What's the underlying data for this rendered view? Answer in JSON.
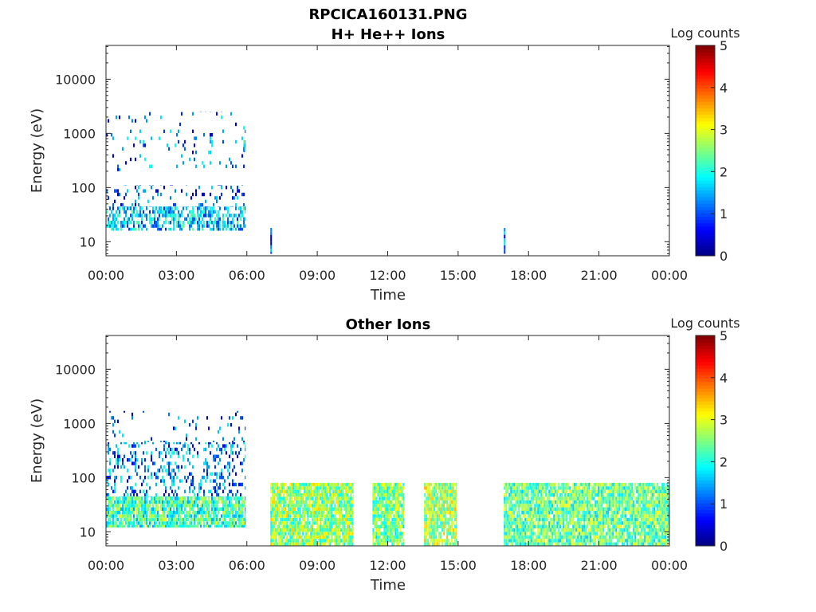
{
  "figure": {
    "filename": "RPCICA160131.PNG"
  },
  "colormap": [
    "#00007f",
    "#0000ff",
    "#007fff",
    "#00ffff",
    "#7fff7f",
    "#ffff00",
    "#ff7f00",
    "#ff0000",
    "#7f0000"
  ],
  "chart_data": [
    {
      "type": "heatmap",
      "title": "H+ He++ Ions",
      "xlabel": "Time",
      "ylabel": "Energy (eV)",
      "x_tick_labels": [
        "00:00",
        "03:00",
        "06:00",
        "09:00",
        "12:00",
        "15:00",
        "18:00",
        "21:00",
        "00:00"
      ],
      "xlim_hours": [
        0,
        24
      ],
      "y_tick_values": [
        10,
        100,
        1000,
        10000
      ],
      "y_tick_labels": [
        "10",
        "100",
        "1000",
        "10000"
      ],
      "ylim": [
        5.5,
        42000
      ],
      "yscale": "log",
      "colorbar": {
        "label": "Log counts",
        "range": [
          0,
          5
        ],
        "tick_labels": [
          "0",
          "1",
          "2",
          "3",
          "4",
          "5"
        ]
      },
      "regions": [
        {
          "t_start": 0.0,
          "t_end": 5.95,
          "e_min": 16,
          "e_max": 45,
          "coverage": 0.55,
          "level": 1.6
        },
        {
          "t_start": 0.0,
          "t_end": 5.95,
          "e_min": 45,
          "e_max": 110,
          "coverage": 0.12,
          "level": 1.0
        },
        {
          "t_start": 0.0,
          "t_end": 5.95,
          "e_min": 200,
          "e_max": 2500,
          "coverage": 0.07,
          "level": 1.2
        },
        {
          "t_start": 5.85,
          "t_end": 5.95,
          "e_min": 450,
          "e_max": 750,
          "coverage": 1.0,
          "level": 1.8
        },
        {
          "t_start": 7.0,
          "t_end": 7.07,
          "e_min": 6,
          "e_max": 18,
          "coverage": 1.0,
          "level": 1.0
        },
        {
          "t_start": 16.95,
          "t_end": 17.02,
          "e_min": 6,
          "e_max": 18,
          "coverage": 1.0,
          "level": 1.0
        }
      ]
    },
    {
      "type": "heatmap",
      "title": "Other Ions",
      "xlabel": "Time",
      "ylabel": "Energy (eV)",
      "x_tick_labels": [
        "00:00",
        "03:00",
        "06:00",
        "09:00",
        "12:00",
        "15:00",
        "18:00",
        "21:00",
        "00:00"
      ],
      "xlim_hours": [
        0,
        24
      ],
      "y_tick_values": [
        10,
        100,
        1000,
        10000
      ],
      "y_tick_labels": [
        "10",
        "100",
        "1000",
        "10000"
      ],
      "ylim": [
        5.5,
        42000
      ],
      "yscale": "log",
      "colorbar": {
        "label": "Log counts",
        "range": [
          0,
          5
        ],
        "tick_labels": [
          "0",
          "1",
          "2",
          "3",
          "4",
          "5"
        ]
      },
      "regions": [
        {
          "t_start": 0.0,
          "t_end": 5.95,
          "e_min": 12,
          "e_max": 45,
          "coverage": 0.85,
          "level": 2.2
        },
        {
          "t_start": 0.0,
          "t_end": 5.95,
          "e_min": 45,
          "e_max": 450,
          "coverage": 0.25,
          "level": 1.3
        },
        {
          "t_start": 0.0,
          "t_end": 5.95,
          "e_min": 450,
          "e_max": 1700,
          "coverage": 0.06,
          "level": 1.0
        },
        {
          "t_start": 7.0,
          "t_end": 10.55,
          "e_min": 5.5,
          "e_max": 80,
          "coverage": 0.9,
          "level": 2.6
        },
        {
          "t_start": 11.35,
          "t_end": 12.7,
          "e_min": 5.5,
          "e_max": 80,
          "coverage": 0.9,
          "level": 2.5
        },
        {
          "t_start": 13.55,
          "t_end": 14.95,
          "e_min": 5.5,
          "e_max": 80,
          "coverage": 0.9,
          "level": 2.7
        },
        {
          "t_start": 16.95,
          "t_end": 24.0,
          "e_min": 5.5,
          "e_max": 80,
          "coverage": 0.9,
          "level": 2.4
        }
      ]
    }
  ]
}
